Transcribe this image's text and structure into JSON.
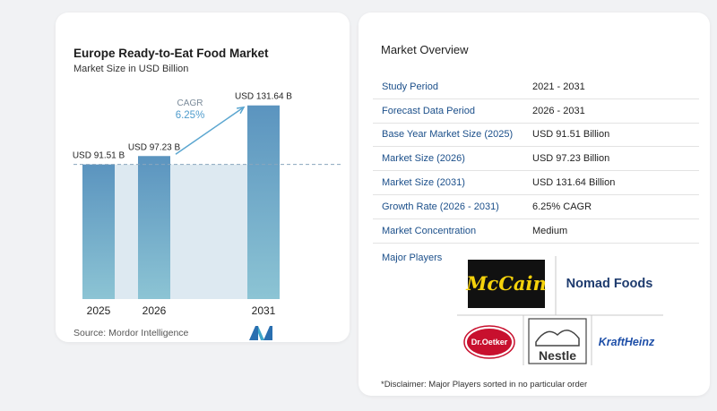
{
  "chart_data": {
    "type": "bar",
    "title": "Europe Ready-to-Eat Food Market",
    "subtitle": "Market Size in USD Billion",
    "categories": [
      "2025",
      "2026",
      "2031"
    ],
    "values": [
      91.51,
      97.23,
      131.64
    ],
    "value_labels": [
      "USD 91.51 B",
      "USD 97.23 B",
      "USD 131.64 B"
    ],
    "ylim": [
      0,
      140
    ],
    "cagr_label": "CAGR",
    "cagr_value": "6.25%",
    "bar_color": "#5b94bf",
    "bar_color_light": "#8cc4d4",
    "shade_color": "#dde9f1",
    "grid": false
  },
  "source": "Source:  Mordor Intelligence",
  "overview": {
    "title": "Market Overview",
    "rows": [
      {
        "label": "Study Period",
        "value": "2021 - 2031"
      },
      {
        "label": "Forecast Data Period",
        "value": "2026 - 2031"
      },
      {
        "label": "Base Year Market Size (2025)",
        "value": "USD 91.51 Billion"
      },
      {
        "label": "Market Size (2026)",
        "value": "USD 97.23 Billion"
      },
      {
        "label": "Market Size (2031)",
        "value": "USD 131.64 Billion"
      },
      {
        "label": "Growth Rate (2026 - 2031)",
        "value": "6.25% CAGR"
      },
      {
        "label": "Market Concentration",
        "value": "Medium"
      }
    ],
    "major_players_label": "Major Players",
    "players": [
      "McCain",
      "Nomad Foods",
      "Dr.Oetker",
      "Nestle",
      "KraftHeinz"
    ],
    "disclaimer": "*Disclaimer: Major Players sorted in no particular order"
  }
}
